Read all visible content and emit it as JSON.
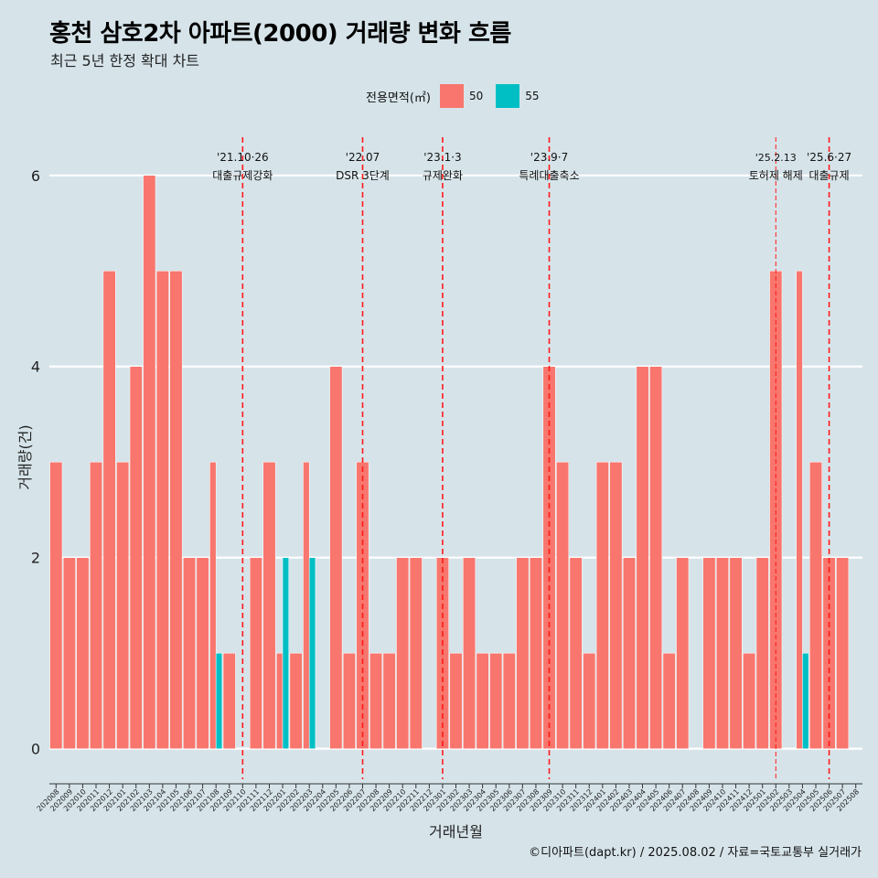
{
  "title": "홍천 삼호2차 아파트(2000) 거래량 변화 흐름",
  "subtitle": "최근 5년 한정 확대 차트",
  "legend": {
    "title": "전용면적(㎡)",
    "items": [
      {
        "label": "50",
        "color": "#f8766d"
      },
      {
        "label": "55",
        "color": "#00bfc4"
      }
    ]
  },
  "caption": "©디아파트(dapt.kr) / 2025.08.02 / 자료=국토교통부 실거래가",
  "chart_data": {
    "type": "bar",
    "xlabel": "거래년월",
    "ylabel": "거래량(건)",
    "ylim": [
      -0.3,
      6.4
    ],
    "yticks": [
      0,
      2,
      4,
      6
    ],
    "categories": [
      "202008",
      "202009",
      "202010",
      "202011",
      "202012",
      "202101",
      "202102",
      "202103",
      "202104",
      "202105",
      "202106",
      "202107",
      "202108",
      "202109",
      "202110",
      "202111",
      "202112",
      "202201",
      "202202",
      "202203",
      "202204",
      "202205",
      "202206",
      "202207",
      "202208",
      "202209",
      "202210",
      "202211",
      "202212",
      "202301",
      "202302",
      "202303",
      "202304",
      "202305",
      "202306",
      "202307",
      "202308",
      "202309",
      "202310",
      "202311",
      "202312",
      "202401",
      "202402",
      "202403",
      "202404",
      "202405",
      "202406",
      "202407",
      "202408",
      "202409",
      "202410",
      "202411",
      "202412",
      "202501",
      "202502",
      "202503",
      "202504",
      "202505",
      "202506",
      "202507",
      "202508"
    ],
    "series": [
      {
        "name": "50",
        "color": "#f8766d",
        "values": [
          3,
          2,
          2,
          3,
          5,
          3,
          4,
          6,
          5,
          5,
          2,
          2,
          3,
          1,
          0,
          2,
          3,
          1,
          1,
          3,
          0,
          4,
          1,
          3,
          1,
          1,
          2,
          2,
          0,
          2,
          1,
          2,
          1,
          1,
          1,
          2,
          2,
          4,
          3,
          2,
          1,
          3,
          3,
          2,
          4,
          4,
          1,
          2,
          0,
          2,
          2,
          2,
          1,
          2,
          5,
          0,
          5,
          3,
          2,
          2,
          0
        ]
      },
      {
        "name": "55",
        "color": "#00bfc4",
        "values": [
          0,
          0,
          0,
          0,
          0,
          0,
          0,
          0,
          0,
          0,
          0,
          0,
          1,
          0,
          0,
          0,
          0,
          2,
          0,
          2,
          0,
          0,
          0,
          0,
          0,
          0,
          0,
          0,
          0,
          0,
          0,
          0,
          0,
          0,
          0,
          0,
          0,
          0,
          0,
          0,
          0,
          0,
          0,
          0,
          0,
          0,
          0,
          0,
          0,
          0,
          0,
          0,
          0,
          0,
          0,
          0,
          1,
          0,
          0,
          0,
          0
        ]
      }
    ],
    "annotations": [
      {
        "date": "'21.10·26",
        "label": "대출규제강화",
        "pos": 14.5,
        "style": "dashed"
      },
      {
        "date": "'22.07",
        "label": "DSR 3단계",
        "pos": 23.5,
        "style": "dashed"
      },
      {
        "date": "'23.1·3",
        "label": "규제완화",
        "pos": 29.5,
        "style": "dashed"
      },
      {
        "date": "'23.9·7",
        "label": "특례대출축소",
        "pos": 37.5,
        "style": "dashed"
      },
      {
        "date": "'25.2.13",
        "label": "토허제 해제",
        "pos": 54.5,
        "style": "thin"
      },
      {
        "date": "'25.6·27",
        "label": "대출규제",
        "pos": 58.5,
        "style": "dashed"
      }
    ]
  }
}
